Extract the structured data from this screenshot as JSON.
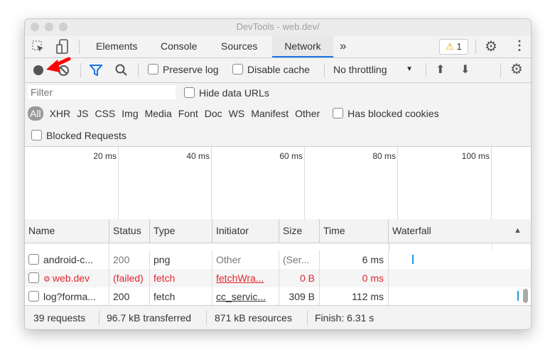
{
  "window": {
    "title": "DevTools - web.dev/"
  },
  "tabs": [
    {
      "label": "Elements"
    },
    {
      "label": "Console"
    },
    {
      "label": "Sources"
    },
    {
      "label": "Network",
      "active": true
    }
  ],
  "tabbar": {
    "more": "»",
    "warning_count": "1",
    "warning_icon": "⚠"
  },
  "toolbar": {
    "preserve_log": "Preserve log",
    "disable_cache": "Disable cache",
    "throttling": "No throttling"
  },
  "filter": {
    "placeholder": "Filter",
    "hide_data_urls": "Hide data URLs",
    "types": [
      "All",
      "XHR",
      "JS",
      "CSS",
      "Img",
      "Media",
      "Font",
      "Doc",
      "WS",
      "Manifest",
      "Other"
    ],
    "has_blocked_cookies": "Has blocked cookies",
    "blocked_requests": "Blocked Requests"
  },
  "overview": {
    "ticks": [
      "20 ms",
      "40 ms",
      "60 ms",
      "80 ms",
      "100 ms"
    ]
  },
  "table": {
    "headers": [
      "Name",
      "Status",
      "Type",
      "Initiator",
      "Size",
      "Time",
      "Waterfall"
    ],
    "rows": [
      {
        "name": "android-c...",
        "status": "200",
        "type": "png",
        "initiator": "Other",
        "size": "(Ser...",
        "time": "6 ms",
        "failed": false
      },
      {
        "name": "web.dev",
        "status": "(failed)",
        "type": "fetch",
        "initiator": "fetchWra...",
        "size": "0 B",
        "time": "0 ms",
        "failed": true
      },
      {
        "name": "log?forma...",
        "status": "200",
        "type": "fetch",
        "initiator": "cc_servic...",
        "size": "309 B",
        "time": "112 ms",
        "failed": false
      }
    ]
  },
  "statusbar": {
    "requests": "39 requests",
    "transferred": "96.7 kB transferred",
    "resources": "871 kB resources",
    "finish": "Finish: 6.31 s"
  },
  "colors": {
    "accent": "#1a73e8",
    "error": "#e0262f",
    "annotation_arrow": "#ff0000"
  }
}
